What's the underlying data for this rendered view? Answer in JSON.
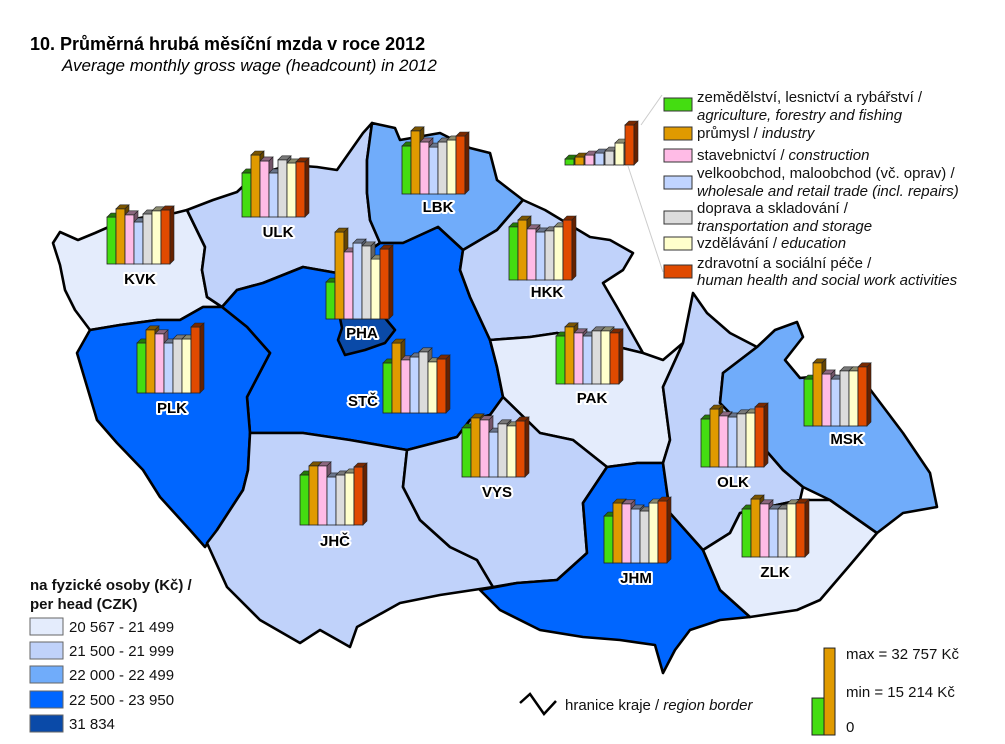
{
  "header": {
    "title": "10. Průměrná hrubá měsíční mzda v roce 2012",
    "subtitle": "Average monthly gross wage (headcount) in 2012"
  },
  "sectors": [
    {
      "cz": "zemědělství, lesnictví a rybářství /",
      "en": "agriculture, forestry and fishing",
      "color": "#44dd11"
    },
    {
      "cz": "průmysl /",
      "en": "industry",
      "color": "#e09a00"
    },
    {
      "cz": "stavebnictví /",
      "en": "construction",
      "color": "#ffbbe6"
    },
    {
      "cz": "velkoobchod, maloobchod (vč. oprav) /",
      "en": "wholesale and retail trade (incl. repairs)",
      "color": "#c0d4ff"
    },
    {
      "cz": "doprava a skladování /",
      "en": "transportation and storage",
      "color": "#dcdcdc"
    },
    {
      "cz": "vzdělávání /",
      "en": "education",
      "color": "#ffffcc"
    },
    {
      "cz": "zdravotní a sociální péče /",
      "en": "human health and social work activities",
      "color": "#e04a00"
    }
  ],
  "choropleth_legend": {
    "title_cz": "na fyzické osoby (Kč) /",
    "title_en": "per head (CZK)",
    "classes": [
      {
        "label": "20 567 - 21 499",
        "color": "#e4ecfc"
      },
      {
        "label": "21 500 - 21 999",
        "color": "#c0d2fa"
      },
      {
        "label": "22 000 - 22 499",
        "color": "#70acfa"
      },
      {
        "label": "22 500 - 23 950",
        "color": "#0066ff"
      },
      {
        "label": "31 834",
        "color": "#0a4aa8"
      }
    ]
  },
  "border_legend": {
    "cz": "hranice kraje /",
    "en": "region border"
  },
  "scale_legend": {
    "max": "max = 32 757 Kč",
    "min": "min = 15 214 Kč",
    "zero": "0",
    "max_value": 32757,
    "min_value": 15214
  },
  "map": {
    "regions": [
      {
        "code": "KVK",
        "class": 0,
        "wages": [
          18700,
          21600,
          19500,
          17000,
          19800,
          20900,
          21200
        ]
      },
      {
        "code": "ULK",
        "class": 1,
        "wages": [
          17700,
          24000,
          21900,
          17700,
          22300,
          21200,
          21600
        ]
      },
      {
        "code": "LBK",
        "class": 2,
        "wages": [
          19100,
          24400,
          20500,
          18700,
          20500,
          21200,
          22600
        ]
      },
      {
        "code": "STČ",
        "class": 3,
        "wages": [
          19800,
          26800,
          20900,
          21900,
          23700,
          20200,
          21200
        ]
      },
      {
        "code": "PHA",
        "class": 4,
        "wages": [
          15214,
          32757,
          25800,
          28900,
          27900,
          23300,
          26800
        ]
      },
      {
        "code": "HKK",
        "class": 1,
        "wages": [
          20900,
          23300,
          20200,
          19100,
          19500,
          20900,
          23300
        ]
      },
      {
        "code": "PAK",
        "class": 0,
        "wages": [
          19100,
          22300,
          20200,
          19100,
          20900,
          20900,
          20200
        ]
      },
      {
        "code": "PLK",
        "class": 3,
        "wages": [
          19800,
          24400,
          23000,
          19800,
          21200,
          21200,
          25400
        ]
      },
      {
        "code": "JHČ",
        "class": 1,
        "wages": [
          19800,
          23000,
          23000,
          19100,
          19800,
          20500,
          22600
        ]
      },
      {
        "code": "VYS",
        "class": 1,
        "wages": [
          19500,
          23000,
          22300,
          18000,
          20900,
          20200,
          21900
        ]
      },
      {
        "code": "JHM",
        "class": 3,
        "wages": [
          18700,
          23300,
          23000,
          21200,
          20500,
          23300,
          24000
        ]
      },
      {
        "code": "OLK",
        "class": 1,
        "wages": [
          19100,
          22600,
          20200,
          19800,
          20900,
          21200,
          23300
        ]
      },
      {
        "code": "ZLK",
        "class": 0,
        "wages": [
          19100,
          22600,
          20900,
          19100,
          19100,
          20900,
          21200
        ]
      },
      {
        "code": "MSK",
        "class": 2,
        "wages": [
          18700,
          24400,
          20500,
          18700,
          21600,
          21600,
          23000
        ]
      }
    ]
  }
}
